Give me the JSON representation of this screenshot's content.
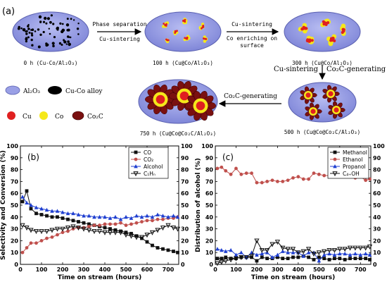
{
  "panel_a": {
    "label": "(a)",
    "stages": [
      {
        "caption": "0 h (Cu-Co/Al₂O₃)"
      },
      {
        "caption": "100 h (Cu@Co/Al₂O₃)"
      },
      {
        "caption": "300 h (Cu@Co/Al₂O₃)"
      },
      {
        "caption": "500 h (Cu@Co@Co₂C/Al₂O₃)"
      },
      {
        "caption": "750 h (Cu@Co@Co₂C/Al₂O₃)"
      }
    ],
    "arrows": [
      {
        "top": "Phase separation",
        "bottom": "Cu-sintering"
      },
      {
        "top": "Cu-sintering",
        "bottom": "Co enriching on",
        "bottom2": "surface"
      },
      {
        "left": "Cu-sintering",
        "right": "Co₂C-generating"
      },
      {
        "top": "Co₂C-generating"
      }
    ],
    "legend": [
      {
        "label": "Al₂O₃",
        "color": "#9aa0e6"
      },
      {
        "label": "Cu-Co alloy",
        "color": "#000000"
      },
      {
        "label": "Cu",
        "color": "#e02020"
      },
      {
        "label": "Co",
        "color": "#f5e81a"
      },
      {
        "label": "Co₂C",
        "color": "#7a1010"
      }
    ]
  },
  "chart_data": [
    {
      "type": "line",
      "panel_label": "(b)",
      "xlabel": "Time on stream (hours)",
      "ylabel": "Selectivity and Conversion (%)",
      "xlim": [
        0,
        750
      ],
      "ylim": [
        0,
        100
      ],
      "xticks": [
        0,
        100,
        200,
        300,
        400,
        500,
        600,
        700
      ],
      "yticks": [
        0,
        10,
        20,
        30,
        40,
        50,
        60,
        70,
        80,
        90,
        100
      ],
      "legend_position": "top-right",
      "series": [
        {
          "name": "CO",
          "color": "#111111",
          "marker": "square",
          "x": [
            10,
            30,
            50,
            75,
            100,
            125,
            150,
            175,
            200,
            225,
            250,
            275,
            300,
            325,
            350,
            375,
            400,
            425,
            450,
            475,
            500,
            525,
            550,
            575,
            600,
            625,
            650,
            675,
            700,
            725,
            745
          ],
          "y": [
            53,
            62,
            47,
            43,
            42,
            41,
            40,
            40,
            39,
            38,
            37,
            36,
            35,
            34,
            33,
            32,
            31,
            30,
            29,
            28,
            27,
            26,
            24,
            22,
            19,
            16,
            14,
            13,
            12,
            11,
            10
          ]
        },
        {
          "name": "CO₂",
          "color": "#c0504d",
          "marker": "circle",
          "x": [
            10,
            30,
            50,
            75,
            100,
            125,
            150,
            175,
            200,
            225,
            250,
            275,
            300,
            325,
            350,
            375,
            400,
            425,
            450,
            475,
            500,
            525,
            550,
            575,
            600,
            625,
            650,
            675,
            700,
            725,
            745
          ],
          "y": [
            10,
            14,
            18,
            18,
            20,
            22,
            23,
            25,
            27,
            28,
            30,
            31,
            31,
            32,
            33,
            33,
            34,
            34,
            34,
            35,
            33,
            34,
            35,
            36,
            37,
            37,
            38,
            38,
            39,
            39,
            40
          ]
        },
        {
          "name": "Alcohol",
          "color": "#1f3fd0",
          "marker": "triangle",
          "x": [
            10,
            30,
            50,
            75,
            100,
            125,
            150,
            175,
            200,
            225,
            250,
            275,
            300,
            325,
            350,
            375,
            400,
            425,
            450,
            475,
            500,
            525,
            550,
            575,
            600,
            625,
            650,
            675,
            700,
            725,
            745
          ],
          "y": [
            57,
            52,
            50,
            48,
            47,
            46,
            45,
            45,
            44,
            43,
            43,
            42,
            41,
            41,
            40,
            40,
            40,
            39,
            40,
            38,
            40,
            39,
            41,
            40,
            41,
            40,
            42,
            41,
            40,
            41,
            40
          ]
        },
        {
          "name": "C₁Hₙ",
          "color": "#111111",
          "marker": "triangle-down",
          "x": [
            10,
            30,
            50,
            75,
            100,
            125,
            150,
            175,
            200,
            225,
            250,
            275,
            300,
            325,
            350,
            375,
            400,
            425,
            450,
            475,
            500,
            525,
            550,
            575,
            600,
            625,
            650,
            675,
            700,
            725,
            745
          ],
          "y": [
            33,
            31,
            29,
            28,
            28,
            28,
            29,
            30,
            30,
            31,
            32,
            31,
            30,
            29,
            28,
            28,
            27,
            27,
            27,
            27,
            25,
            24,
            23,
            23,
            25,
            27,
            29,
            31,
            33,
            31,
            30
          ]
        }
      ]
    },
    {
      "type": "line",
      "panel_label": "(c)",
      "xlabel": "Time on stream (hours)",
      "ylabel": "Distribution of alcohol (%)",
      "xlim": [
        0,
        750
      ],
      "ylim": [
        0,
        100
      ],
      "xticks": [
        0,
        100,
        200,
        300,
        400,
        500,
        600,
        700
      ],
      "yticks": [
        0,
        10,
        20,
        30,
        40,
        50,
        60,
        70,
        80,
        90,
        100
      ],
      "legend_position": "top-right",
      "series": [
        {
          "name": "Methanol",
          "color": "#111111",
          "marker": "square",
          "x": [
            10,
            30,
            50,
            75,
            100,
            125,
            150,
            175,
            200,
            225,
            250,
            275,
            300,
            325,
            350,
            375,
            400,
            425,
            450,
            475,
            500,
            525,
            550,
            575,
            600,
            625,
            650,
            675,
            700,
            725,
            745
          ],
          "y": [
            5,
            5,
            6,
            5,
            5,
            6,
            6,
            6,
            3,
            6,
            5,
            5,
            6,
            5,
            5,
            6,
            6,
            7,
            6,
            4,
            6,
            5,
            4,
            5,
            5,
            4,
            5,
            5,
            5,
            5,
            4
          ]
        },
        {
          "name": "Ethanol",
          "color": "#c0504d",
          "marker": "circle",
          "x": [
            10,
            30,
            50,
            75,
            100,
            125,
            150,
            175,
            200,
            225,
            250,
            275,
            300,
            325,
            350,
            375,
            400,
            425,
            450,
            475,
            500,
            525,
            550,
            575,
            600,
            625,
            650,
            675,
            700,
            725,
            745
          ],
          "y": [
            81,
            82,
            79,
            76,
            81,
            76,
            77,
            77,
            69,
            69,
            70,
            71,
            70,
            70,
            71,
            73,
            74,
            72,
            72,
            77,
            76,
            75,
            75,
            74,
            76,
            75,
            74,
            73,
            74,
            71,
            72
          ]
        },
        {
          "name": "Propanol",
          "color": "#1f3fd0",
          "marker": "triangle",
          "x": [
            10,
            30,
            50,
            75,
            100,
            125,
            150,
            175,
            200,
            225,
            250,
            275,
            300,
            325,
            350,
            375,
            400,
            425,
            450,
            475,
            500,
            525,
            550,
            575,
            600,
            625,
            650,
            675,
            700,
            725,
            745
          ],
          "y": [
            13,
            12,
            11,
            12,
            8,
            10,
            6,
            10,
            8,
            9,
            10,
            6,
            8,
            11,
            10,
            10,
            10,
            7,
            10,
            10,
            3,
            8,
            9,
            8,
            9,
            9,
            8,
            9,
            8,
            9,
            8
          ]
        },
        {
          "name": "C₄₊OH",
          "color": "#111111",
          "marker": "triangle-down",
          "x": [
            10,
            30,
            50,
            75,
            100,
            125,
            150,
            175,
            200,
            225,
            250,
            275,
            300,
            325,
            350,
            375,
            400,
            425,
            450,
            475,
            500,
            525,
            550,
            575,
            600,
            625,
            650,
            675,
            700,
            725,
            745
          ],
          "y": [
            1,
            2,
            3,
            4,
            5,
            6,
            6,
            7,
            20,
            12,
            12,
            17,
            19,
            14,
            13,
            13,
            10,
            11,
            13,
            9,
            10,
            11,
            12,
            12,
            13,
            13,
            14,
            14,
            14,
            14,
            15
          ]
        }
      ]
    }
  ]
}
